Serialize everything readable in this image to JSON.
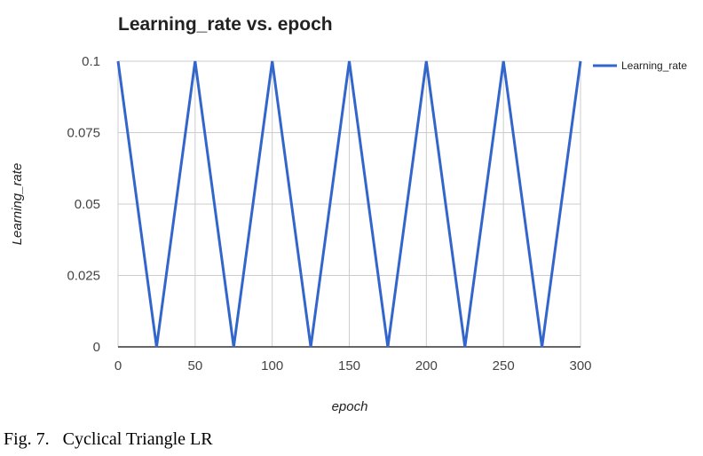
{
  "caption": "Fig. 7.   Cyclical Triangle LR",
  "colors": {
    "series": "#3366cc",
    "grid": "#cccccc",
    "axis": "#333333"
  },
  "chart_data": {
    "type": "line",
    "title": "Learning_rate vs. epoch",
    "xlabel": "epoch",
    "ylabel": "Learning_rate",
    "xlim": [
      0,
      300
    ],
    "ylim": [
      0,
      0.1
    ],
    "x_ticks": [
      "0",
      "50",
      "100",
      "150",
      "200",
      "250",
      "300"
    ],
    "y_ticks": [
      "0",
      "0.025",
      "0.05",
      "0.075",
      "0.1"
    ],
    "grid": true,
    "legend_position": "right",
    "series": [
      {
        "name": "Learning_rate",
        "x": [
          0,
          25,
          50,
          75,
          100,
          125,
          150,
          175,
          200,
          225,
          250,
          275,
          300
        ],
        "y": [
          0.1,
          0,
          0.1,
          0,
          0.1,
          0,
          0.1,
          0,
          0.1,
          0,
          0.1,
          0,
          0.1
        ]
      }
    ]
  }
}
